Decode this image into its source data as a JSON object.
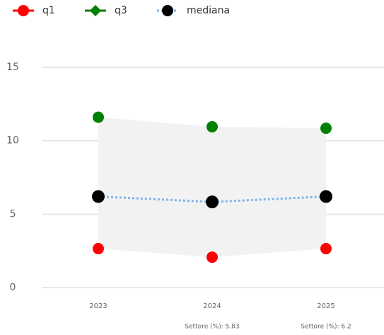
{
  "chart_data": {
    "type": "line",
    "categories": [
      "2023",
      "2024",
      "2025"
    ],
    "x_sublabels": [
      null,
      "Settore (%): 5.83",
      "Settore (%): 6.2"
    ],
    "series": [
      {
        "name": "q1",
        "color": "#ff0000",
        "legend_symbol": "circle",
        "line": false,
        "values": [
          2.65,
          2.07,
          2.65
        ]
      },
      {
        "name": "q3",
        "color": "#008000",
        "legend_symbol": "diamond",
        "line": false,
        "values": [
          11.6,
          10.95,
          10.85
        ]
      },
      {
        "name": "mediana",
        "color": "#000000",
        "line_color": "#7cb5ec",
        "line_style": "dotted",
        "legend_symbol": "circle",
        "line": true,
        "values": [
          6.2,
          5.83,
          6.2
        ]
      }
    ],
    "band_color": "#f2f2f2",
    "ylim": [
      0,
      15
    ],
    "yticks": [
      0,
      5,
      10,
      15
    ],
    "grid": true
  }
}
